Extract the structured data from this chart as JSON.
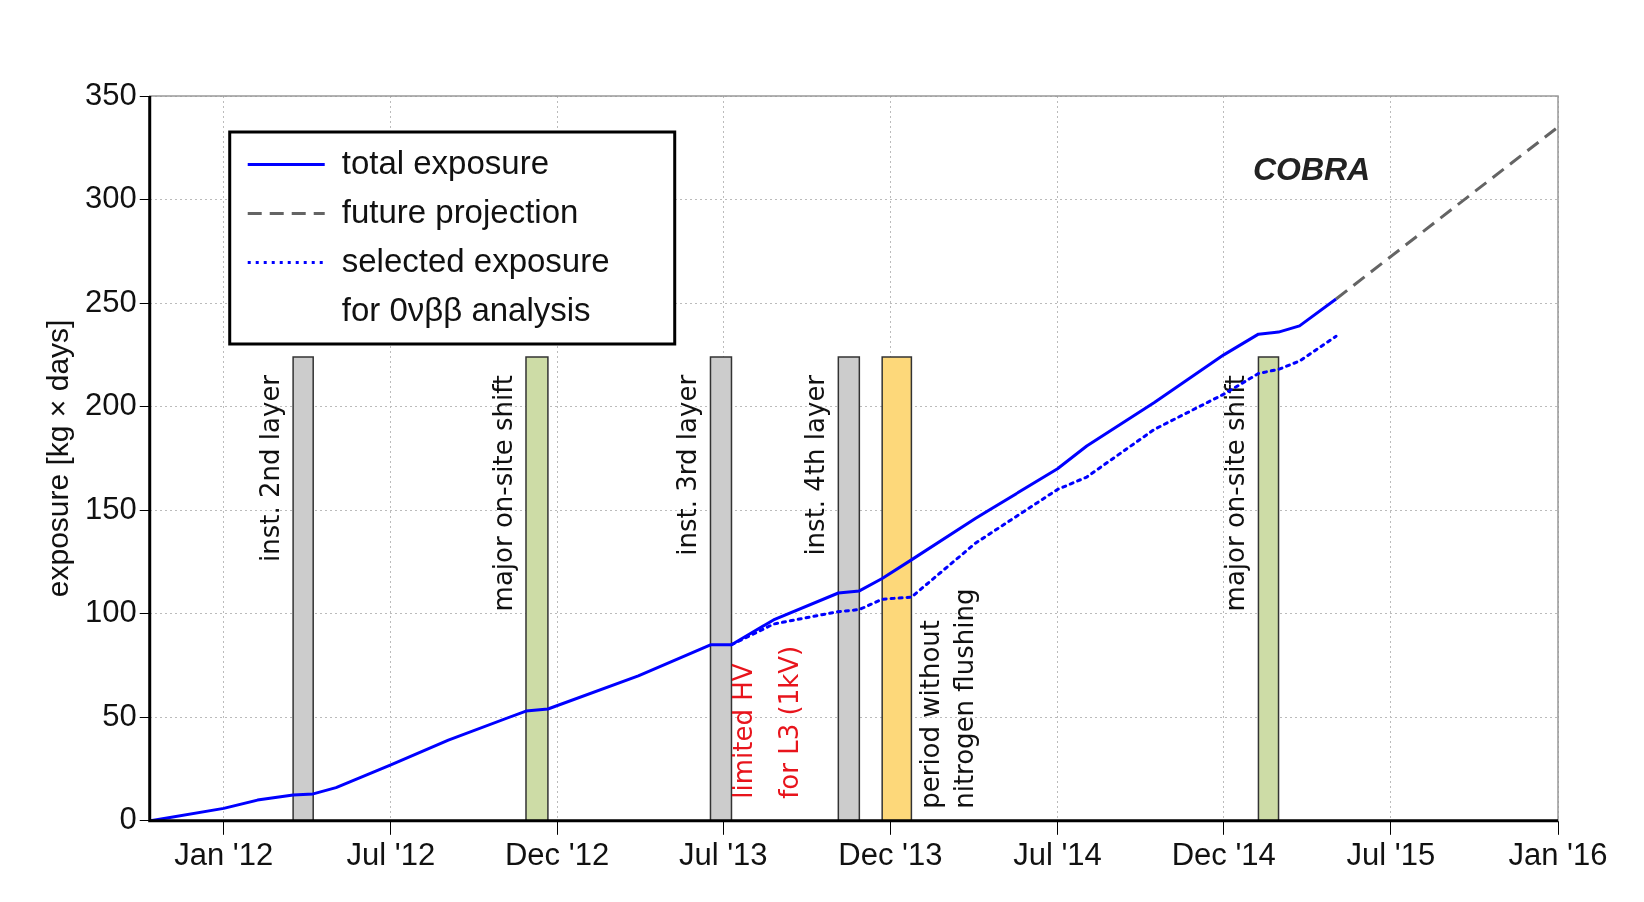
{
  "chart_data": {
    "type": "line",
    "ylabel": "exposure [kg × days]",
    "xlim": [
      "2011-10-12",
      "2016-01-01"
    ],
    "xticks": [
      {
        "value": "2012-01-01",
        "label": "Jan '12"
      },
      {
        "value": "2012-07-02",
        "label": "Jul '12"
      },
      {
        "value": "2012-12-31",
        "label": "Dec '12"
      },
      {
        "value": "2013-07-01",
        "label": "Jul '13"
      },
      {
        "value": "2013-12-31",
        "label": "Dec '13"
      },
      {
        "value": "2014-07-02",
        "label": "Jul '14"
      },
      {
        "value": "2014-12-31",
        "label": "Dec '14"
      },
      {
        "value": "2015-07-02",
        "label": "Jul '15"
      },
      {
        "value": "2016-01-01",
        "label": "Jan '16"
      }
    ],
    "ylim": [
      0,
      350
    ],
    "yticks": [
      0,
      50,
      100,
      150,
      200,
      250,
      300,
      350
    ],
    "grid": true,
    "legend": "top left",
    "series": [
      {
        "name": "total exposure",
        "color": "#0000ff",
        "line_style": "solid",
        "x": [
          "2011-10-13",
          "2012-01-01",
          "2012-02-07",
          "2012-03-17",
          "2012-04-08",
          "2012-05-03",
          "2012-07-02",
          "2012-09-03",
          "2012-11-27",
          "2012-12-21",
          "2013-03-30",
          "2013-06-17",
          "2013-07-10",
          "2013-08-25",
          "2013-11-04",
          "2013-11-27",
          "2013-12-22",
          "2014-01-23",
          "2014-04-03",
          "2014-07-02",
          "2014-08-03",
          "2014-10-16",
          "2014-12-31",
          "2015-02-07",
          "2015-03-01",
          "2015-03-24",
          "2015-05-03"
        ],
        "values": [
          0,
          6,
          10,
          12.5,
          13,
          16,
          27,
          39,
          53,
          54,
          70,
          85,
          85,
          97,
          110,
          111,
          117,
          126,
          146,
          170,
          181,
          202,
          225,
          235,
          236,
          239,
          252
        ]
      },
      {
        "name": "future projection",
        "color": "#646464",
        "line_style": "dashed",
        "x": [
          "2015-05-03",
          "2016-01-01"
        ],
        "values": [
          252,
          335
        ]
      },
      {
        "name": "selected exposure for 0νββ analysis",
        "color": "#0000ff",
        "line_style": "dotted",
        "x": [
          "2013-07-10",
          "2013-08-25",
          "2013-11-04",
          "2013-11-27",
          "2013-12-22",
          "2014-01-23",
          "2014-04-03",
          "2014-07-02",
          "2014-08-03",
          "2014-10-16",
          "2014-12-31",
          "2015-02-07",
          "2015-03-01",
          "2015-03-24",
          "2015-05-03"
        ],
        "values": [
          85,
          95,
          101,
          102,
          107,
          108,
          134,
          160,
          166,
          189,
          206,
          216,
          218,
          222,
          234
        ]
      }
    ],
    "bands": [
      {
        "axis": "x",
        "from": "2012-03-17",
        "to": "2012-04-08",
        "label": "inst. 2nd layer",
        "color": "#cccccc"
      },
      {
        "axis": "x",
        "from": "2012-11-27",
        "to": "2012-12-21",
        "label": "major on-site shift",
        "color": "#cddca6"
      },
      {
        "axis": "x",
        "from": "2013-06-17",
        "to": "2013-07-10",
        "label": "inst. 3rd layer",
        "color": "#cccccc"
      },
      {
        "axis": "x",
        "from": "2013-11-04",
        "to": "2013-11-27",
        "label": "inst. 4th layer",
        "color": "#cccccc"
      },
      {
        "axis": "x",
        "from": "2013-12-22",
        "to": "2014-01-23",
        "label": "period without\nnitrogen flushing",
        "color": "#fdd87a"
      },
      {
        "axis": "x",
        "from": "2015-02-07",
        "to": "2015-03-01",
        "label": "major on-site shift",
        "color": "#cddca6"
      }
    ],
    "annotations": [
      "COBRA",
      "limited HV\nfor L3 (1kV)"
    ]
  }
}
